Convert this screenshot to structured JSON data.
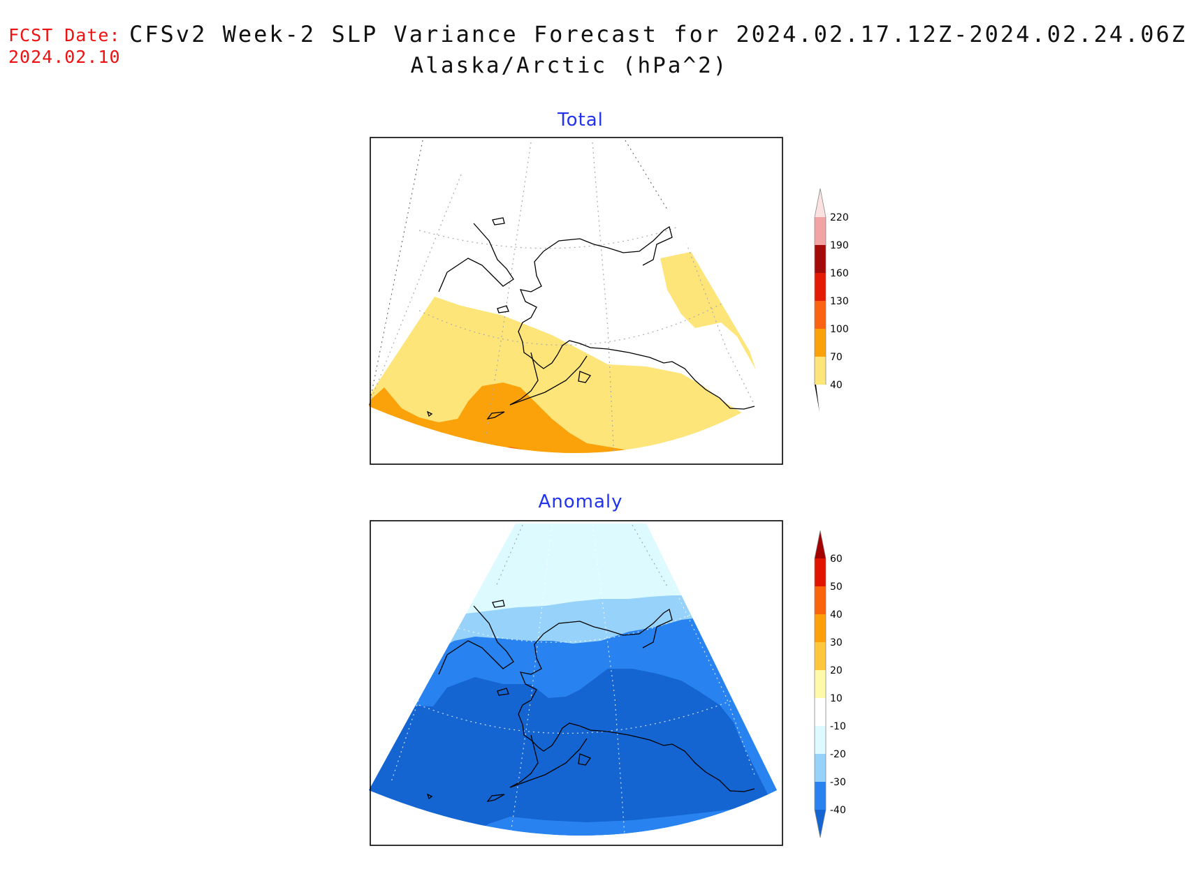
{
  "header": {
    "fcst_label": "FCST Date:",
    "fcst_date": "2024.02.10",
    "title": "CFSv2 Week-2 SLP Variance Forecast for 2024.02.17.12Z-2024.02.24.06Z",
    "subtitle": "Alaska/Arctic (hPa^2)"
  },
  "colors": {
    "panel_title": "#2233ee",
    "header_text": "#111111",
    "fcst_text": "#ee1111",
    "coast": "#000000",
    "grid": "#aaaaaa"
  },
  "panels": [
    {
      "title": "Total",
      "colorbar": {
        "labels": [
          "40",
          "70",
          "100",
          "130",
          "160",
          "190",
          "220"
        ],
        "colors": [
          "#fde57a",
          "#fba20a",
          "#fb6313",
          "#e51a05",
          "#a40a0a",
          "#f2a3a3",
          "#fce1e1"
        ]
      }
    },
    {
      "title": "Anomaly",
      "colorbar": {
        "labels": [
          "-40",
          "-30",
          "-20",
          "-10",
          "10",
          "20",
          "30",
          "40",
          "50",
          "60"
        ],
        "colors": [
          "#1464d2",
          "#2882f0",
          "#96d2fa",
          "#dcfaff",
          "#ffffff",
          "#fffaaa",
          "#ffc83c",
          "#ffa00a",
          "#fa640a",
          "#e11400",
          "#a50000"
        ]
      }
    }
  ]
}
